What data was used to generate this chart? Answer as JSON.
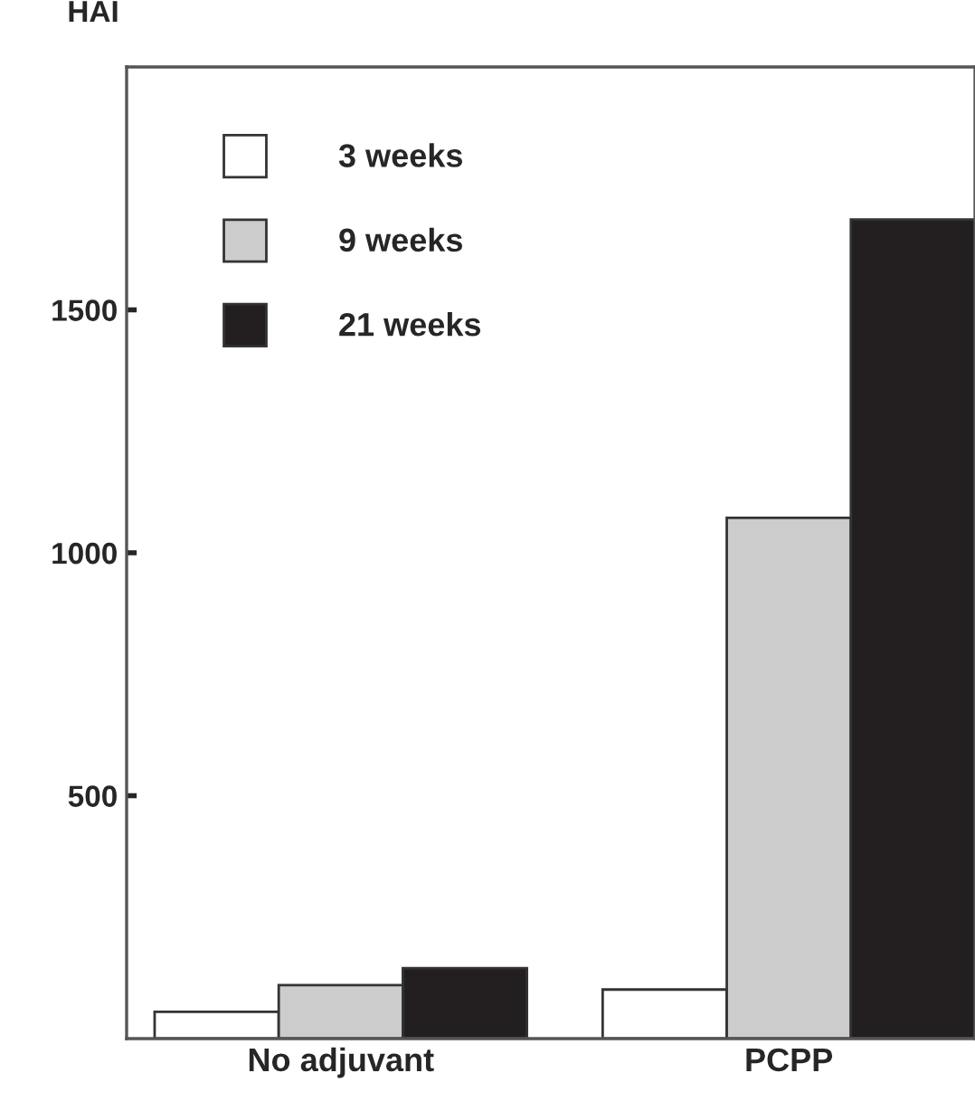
{
  "chart_data": {
    "type": "bar",
    "ylabel": "HAI",
    "categories": [
      "No adjuvant",
      "PCPP"
    ],
    "series": [
      {
        "name": "3 weeks",
        "color": "#ffffff",
        "values": [
          55,
          101
        ]
      },
      {
        "name": "9 weeks",
        "color": "#cccccc",
        "values": [
          110,
          1072
        ]
      },
      {
        "name": "21 weeks",
        "color": "#231f20",
        "values": [
          145,
          1686
        ]
      }
    ],
    "ylim": [
      0,
      2000
    ],
    "yticks": [
      500,
      1000,
      1500
    ],
    "grid": false,
    "legend": "top left"
  }
}
